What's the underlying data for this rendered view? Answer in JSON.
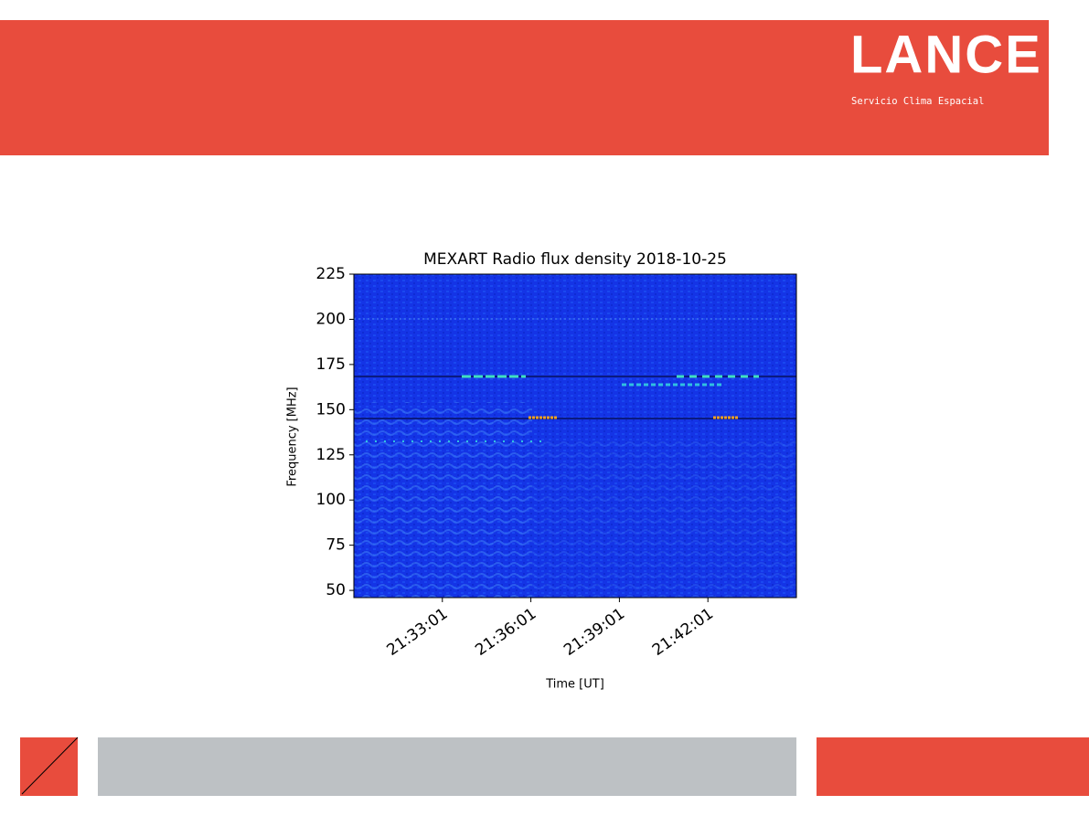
{
  "header": {
    "logo": "LANCE",
    "subtitle": "Servicio Clima Espacial"
  },
  "chart_data": {
    "type": "spectrogram",
    "title": "MEXART Radio flux density 2018-10-25",
    "x_label": "Time [UT]",
    "y_label": "Frequency [MHz]",
    "xlim": [
      "21:30:01",
      "21:45:01"
    ],
    "xticks": [
      "21:33:01",
      "21:36:01",
      "21:39:01",
      "21:42:01"
    ],
    "ylim": [
      46,
      225
    ],
    "yticks": [
      50,
      75,
      100,
      125,
      150,
      175,
      200,
      225
    ]
  }
}
